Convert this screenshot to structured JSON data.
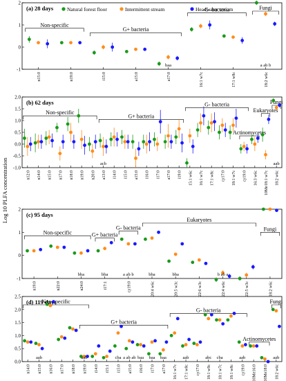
{
  "figure": {
    "y_axis_label": "Log 10 PLFA concentration",
    "legend": [
      {
        "name": "Natural forest floor",
        "color": "#1a9a1a"
      },
      {
        "name": "Intermittent stream",
        "color": "#ff8c1a"
      },
      {
        "name": "Headwater stream",
        "color": "#1a1aff"
      }
    ]
  },
  "chart_data": [
    {
      "type": "scatter",
      "title": "(a) 28 days",
      "ylim": [
        -1,
        2
      ],
      "yticks": [
        "-1",
        "0",
        "1",
        "2"
      ],
      "categories": [
        "n15:0",
        "n19:0",
        "i15:0",
        "a15:0",
        "a17:0",
        "16:1 w7c",
        "17:1 w8c",
        "18:2 w6c"
      ],
      "series": [
        {
          "name": "Natural forest floor",
          "values": [
            0.35,
            0.2,
            -0.25,
            -0.2,
            -0.75,
            0.8,
            0.5,
            2.0
          ]
        },
        {
          "name": "Intermittent stream",
          "values": [
            0.2,
            0.2,
            0.0,
            -0.1,
            -0.45,
            0.95,
            0.45,
            1.5
          ]
        },
        {
          "name": "Headwater stream",
          "values": [
            0.15,
            0.2,
            0.0,
            -0.1,
            -0.5,
            1.0,
            0.3,
            1.05
          ]
        }
      ],
      "errors": [
        [
          0.15,
          0.05,
          0.1,
          0.05,
          0.1,
          0.1,
          0.05,
          0.1
        ],
        [
          0.05,
          0.05,
          0.1,
          0.05,
          0.1,
          0.1,
          0.05,
          0.1
        ],
        [
          0.2,
          0.05,
          0.2,
          0.05,
          0.1,
          0.2,
          0.15,
          0.1
        ]
      ],
      "annotations": [
        {
          "text": "Non-specific",
          "from": 0,
          "to": 1,
          "level": 0.85
        },
        {
          "text": "G+ bacteria",
          "from": 2,
          "to": 4,
          "level": 0.65
        },
        {
          "text": "G- bacteria",
          "from": 5,
          "to": 6,
          "level": 1.55
        },
        {
          "text": "Fungi",
          "from": 7,
          "to": 7,
          "level": 2.25
        }
      ],
      "sig_labels": [
        {
          "index": 4,
          "text": "baa"
        },
        {
          "index": 7,
          "text": "a ab b"
        }
      ]
    },
    {
      "type": "scatter",
      "title": "(b) 62 days",
      "ylim": [
        -1,
        2
      ],
      "yticks": [
        "-1.0",
        "-0.5",
        "0.0",
        "0.5",
        "1.0",
        "1.5",
        "2.0"
      ],
      "categories": [
        "n12:0",
        "n14:0",
        "n15:0",
        "n17:0",
        "n18:0",
        "n19:0",
        "n20:0",
        "a13:0",
        "i14:0",
        "i15:0",
        "a15:0",
        "i16:0",
        "i17:0",
        "a17:0",
        "i19:0",
        "15:1 w6c",
        "16:1 w7c",
        "17:1 w8c",
        "cy17:0",
        "18:1 w7c",
        "cy19:0",
        "16:3 w6c",
        "10Me18:1 w7c",
        "18:2 w6c"
      ],
      "series": [
        {
          "name": "Natural forest floor",
          "values": [
            0.25,
            0.05,
            0.25,
            0.7,
            0.85,
            1.2,
            0.0,
            0.15,
            0.2,
            0.3,
            0.1,
            0.1,
            0.2,
            0.1,
            0.3,
            -0.8,
            0.6,
            0.7,
            0.5,
            0.5,
            -0.2,
            0.2,
            0.4,
            1.85
          ]
        },
        {
          "name": "Intermittent stream",
          "values": [
            -0.1,
            0.1,
            0.3,
            -0.4,
            0.5,
            0.2,
            -0.3,
            -0.1,
            0.3,
            0.1,
            -0.6,
            0.0,
            0.0,
            0.35,
            0.65,
            0.35,
            0.9,
            0.9,
            0.8,
            0.8,
            -0.1,
            0.0,
            -0.45,
            1.55
          ]
        },
        {
          "name": "Headwater stream",
          "values": [
            0.0,
            0.1,
            0.15,
            0.1,
            0.1,
            -0.05,
            0.1,
            -0.1,
            0.2,
            0.1,
            -0.2,
            0.1,
            0.95,
            0.1,
            0.05,
            -0.1,
            1.2,
            0.95,
            0.6,
            1.1,
            -0.2,
            0.25,
            1.05,
            1.65
          ]
        }
      ],
      "errors": [
        [
          0.4,
          0.4,
          0.3,
          0.2,
          0.3,
          0.3,
          0.3,
          0.3,
          0.3,
          0.3,
          0.3,
          0.3,
          0.3,
          0.3,
          0.3,
          0.2,
          0.3,
          0.3,
          0.3,
          0.3,
          0.2,
          0.2,
          0.3,
          0.1
        ],
        [
          0.4,
          0.3,
          0.3,
          0.3,
          0.4,
          0.4,
          0.3,
          0.4,
          0.4,
          0.3,
          0.4,
          0.4,
          0.3,
          0.5,
          0.4,
          0.3,
          0.4,
          0.4,
          0.3,
          0.3,
          0.2,
          0.3,
          0.2,
          0.1
        ],
        [
          0.3,
          0.3,
          0.3,
          0.3,
          0.3,
          0.4,
          0.3,
          0.3,
          0.3,
          0.3,
          0.3,
          0.4,
          0.5,
          0.3,
          0.4,
          0.3,
          0.4,
          0.4,
          0.3,
          0.4,
          0.2,
          0.2,
          0.2,
          0.1
        ]
      ],
      "annotations": [
        {
          "text": "Non-specific",
          "from": 0,
          "to": 6,
          "level": 1.2
        },
        {
          "text": "G+ bacteria",
          "from": 7,
          "to": 14,
          "level": 1.05
        },
        {
          "text": "G- bacteria",
          "from": 15,
          "to": 20,
          "level": 1.55
        },
        {
          "text": "Actinomycetes",
          "from": 20,
          "to": 21,
          "level": 0.35
        },
        {
          "text": "Eukaryotes",
          "from": 22,
          "to": 22,
          "level": 1.3
        },
        {
          "text": "Fungi",
          "from": 23,
          "to": 23,
          "level": 1.95
        }
      ],
      "sig_labels": [
        {
          "index": 7,
          "text": "acb"
        },
        {
          "index": 23,
          "text": "aab"
        }
      ]
    },
    {
      "type": "scatter",
      "title": "(c) 95 days",
      "ylim": [
        -1,
        2
      ],
      "yticks": [
        "-1",
        "0",
        "1",
        "2"
      ],
      "categories": [
        "n19:0",
        "n22:0",
        "n24:0",
        "i17:1",
        "cy19:0",
        "20:4 w6c",
        "20:5 w3c",
        "22:6 w3c",
        "22:4 w6c",
        "22:5 w3c",
        "18:2 w6c"
      ],
      "series": [
        {
          "name": "Natural forest floor",
          "values": [
            0.2,
            0.4,
            0.1,
            0.2,
            0.7,
            0.7,
            -0.25,
            -0.3,
            -1.05,
            -1.0,
            2.0
          ]
        },
        {
          "name": "Intermittent stream",
          "values": [
            0.2,
            0.35,
            0.1,
            0.3,
            0.5,
            0.75,
            0.05,
            -0.2,
            -0.75,
            -0.85,
            2.0
          ]
        },
        {
          "name": "Headwater stream",
          "values": [
            0.25,
            0.35,
            0.2,
            0.55,
            0.5,
            1.0,
            0.5,
            -0.35,
            -0.9,
            -0.5,
            1.95
          ]
        }
      ],
      "errors": [
        [
          0.05,
          0.05,
          0.05,
          0.05,
          0.05,
          0.05,
          0.05,
          0.05,
          0.1,
          0.1,
          0.05
        ],
        [
          0.05,
          0.05,
          0.05,
          0.05,
          0.05,
          0.05,
          0.05,
          0.05,
          0.1,
          0.1,
          0.05
        ],
        [
          0.05,
          0.05,
          0.05,
          0.05,
          0.05,
          0.05,
          0.05,
          0.05,
          0.1,
          0.1,
          0.05
        ]
      ],
      "annotations": [
        {
          "text": "Non-specific",
          "from": 0,
          "to": 2,
          "level": 0.85
        },
        {
          "text": "G+ bacteria",
          "from": 3,
          "to": 3,
          "level": 0.75
        },
        {
          "text": "G- bacteria",
          "from": 4,
          "to": 4,
          "level": 1.05
        },
        {
          "text": "Eukaryotes",
          "from": 5,
          "to": 9,
          "level": 1.4
        },
        {
          "text": "Fungi",
          "from": 10,
          "to": 10,
          "level": 1.0
        }
      ],
      "sig_labels": [
        {
          "index": 2,
          "text": "bba"
        },
        {
          "index": 3,
          "text": "bba"
        },
        {
          "index": 4,
          "text": "a ab b"
        },
        {
          "index": 5,
          "text": "bba"
        },
        {
          "index": 6,
          "text": "bba"
        },
        {
          "index": 8,
          "text": "b ab a"
        }
      ]
    },
    {
      "type": "scatter",
      "title": "(d) 119 days",
      "ylim": [
        0,
        2.5
      ],
      "yticks": [
        "0.0",
        "0.5",
        "1.0",
        "1.5",
        "2.0",
        "2.5"
      ],
      "categories": [
        "n14:0",
        "n15:0",
        "n16:0",
        "n17:0",
        "n18:0",
        "n19:0",
        "i14:0",
        "i15:1",
        "i15:0",
        "a15:0",
        "i16:0",
        "i17:0",
        "a17:0",
        "16:1 w7c",
        "17:1 w8c",
        "cy17:0",
        "18:1 w9c",
        "18:1 w7c",
        "18:1 w8c",
        "cy19:0",
        "10Me16:0",
        "10Me18:0",
        "18:2 w6c"
      ],
      "series": [
        {
          "name": "Natural forest floor",
          "values": [
            0.8,
            0.7,
            2.2,
            0.85,
            1.3,
            0.2,
            0.2,
            0.15,
            0.6,
            0.5,
            0.65,
            0.3,
            0.3,
            1.0,
            0.6,
            0.7,
            1.8,
            1.6,
            1.6,
            0.75,
            0.6,
            0.15,
            2.0
          ]
        },
        {
          "name": "Intermittent stream",
          "values": [
            0.75,
            0.65,
            2.15,
            0.95,
            1.25,
            0.2,
            0.3,
            0.2,
            1.1,
            0.8,
            0.65,
            0.75,
            0.45,
            1.1,
            0.65,
            0.65,
            1.65,
            1.6,
            1.75,
            0.6,
            0.6,
            0.1,
            1.95
          ]
        },
        {
          "name": "Headwater stream",
          "values": [
            0.75,
            0.5,
            2.3,
            0.9,
            1.2,
            0.2,
            0.6,
            0.4,
            1.35,
            0.75,
            0.6,
            0.8,
            0.75,
            1.65,
            0.85,
            0.75,
            1.8,
            1.45,
            1.85,
            0.65,
            0.6,
            0.0,
            1.35
          ]
        }
      ],
      "errors": [
        [
          0.03,
          0.03,
          0.03,
          0.03,
          0.03,
          0.03,
          0.03,
          0.03,
          0.03,
          0.03,
          0.03,
          0.03,
          0.03,
          0.03,
          0.03,
          0.03,
          0.03,
          0.03,
          0.03,
          0.03,
          0.03,
          0.03,
          0.03
        ],
        [
          0.03,
          0.03,
          0.03,
          0.03,
          0.03,
          0.03,
          0.03,
          0.03,
          0.03,
          0.03,
          0.03,
          0.03,
          0.03,
          0.03,
          0.03,
          0.03,
          0.03,
          0.03,
          0.03,
          0.03,
          0.03,
          0.03,
          0.03
        ],
        [
          0.03,
          0.03,
          0.03,
          0.03,
          0.03,
          0.03,
          0.03,
          0.03,
          0.03,
          0.03,
          0.03,
          0.03,
          0.03,
          0.03,
          0.03,
          0.03,
          0.03,
          0.03,
          0.03,
          0.03,
          0.03,
          0.03,
          0.03
        ]
      ],
      "annotations": [
        {
          "text": "Non-specific",
          "from": 0,
          "to": 5,
          "level": 2.4
        },
        {
          "text": "G+ bacteria",
          "from": 5,
          "to": 12,
          "level": 1.4
        },
        {
          "text": "G- bacteria",
          "from": 13,
          "to": 19,
          "level": 1.85
        },
        {
          "text": "Actinomycetes",
          "from": 20,
          "to": 21,
          "level": 0.75
        },
        {
          "text": "Fungi",
          "from": 22,
          "to": 22,
          "level": 2.2
        }
      ],
      "sig_labels": [
        {
          "index": 1,
          "text": "aab"
        },
        {
          "index": 5,
          "text": "aab"
        },
        {
          "index": 8,
          "text": "cba"
        },
        {
          "index": 9,
          "text": "a ab ab"
        },
        {
          "index": 10,
          "text": "baa"
        },
        {
          "index": 11,
          "text": "baa"
        },
        {
          "index": 12,
          "text": "baa"
        },
        {
          "index": 14,
          "text": "aab"
        },
        {
          "index": 16,
          "text": "abc"
        },
        {
          "index": 17,
          "text": "cba"
        },
        {
          "index": 19,
          "text": "aab"
        },
        {
          "index": 22,
          "text": "aab"
        }
      ]
    }
  ]
}
